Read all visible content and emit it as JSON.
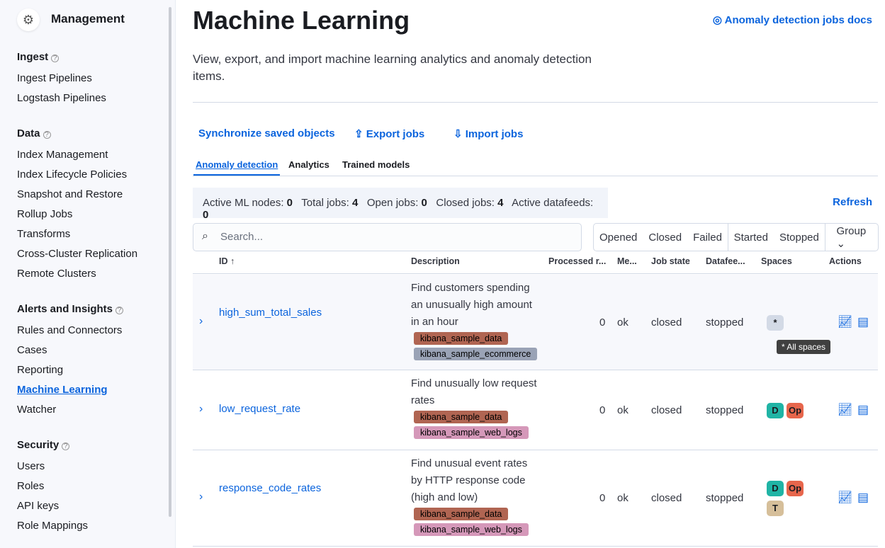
{
  "sidebar": {
    "title": "Management",
    "sections": [
      {
        "label": "Ingest",
        "items": [
          "Ingest Pipelines",
          "Logstash Pipelines"
        ]
      },
      {
        "label": "Data",
        "items": [
          "Index Management",
          "Index Lifecycle Policies",
          "Snapshot and Restore",
          "Rollup Jobs",
          "Transforms",
          "Cross-Cluster Replication",
          "Remote Clusters"
        ]
      },
      {
        "label": "Alerts and Insights",
        "items": [
          "Rules and Connectors",
          "Cases",
          "Reporting",
          "Machine Learning",
          "Watcher"
        ]
      },
      {
        "label": "Security",
        "items": [
          "Users",
          "Roles",
          "API keys",
          "Role Mappings"
        ]
      }
    ],
    "active": "Machine Learning"
  },
  "header": {
    "title": "Machine Learning",
    "docs_link": "Anomaly detection jobs docs",
    "description": "View, export, and import machine learning analytics and anomaly detection items."
  },
  "actions": {
    "sync": "Synchronize saved objects",
    "export": "Export jobs",
    "import": "Import jobs"
  },
  "tabs": [
    "Anomaly detection",
    "Analytics",
    "Trained models"
  ],
  "stats": {
    "active_ml_nodes_label": "Active ML nodes:",
    "active_ml_nodes": "0",
    "total_jobs_label": "Total jobs:",
    "total_jobs": "4",
    "open_jobs_label": "Open jobs:",
    "open_jobs": "0",
    "closed_jobs_label": "Closed jobs:",
    "closed_jobs": "4",
    "active_datafeeds_label": "Active datafeeds:",
    "active_datafeeds": "0"
  },
  "refresh": "Refresh",
  "search": {
    "placeholder": "Search..."
  },
  "filters": [
    "Opened",
    "Closed",
    "Failed",
    "Started",
    "Stopped",
    "Group"
  ],
  "columns": [
    "ID",
    "Description",
    "Processed r...",
    "Me...",
    "Job state",
    "Datafee...",
    "Spaces",
    "Actions"
  ],
  "rows": [
    {
      "id": "high_sum_total_sales",
      "desc": "Find customers spending an unusually high amount in an hour",
      "tags": [
        "kibana_sample_data",
        "kibana_sample_ecommerce"
      ],
      "processed": "0",
      "memory": "ok",
      "state": "closed",
      "datafeed": "stopped",
      "spaces": [
        "*"
      ]
    },
    {
      "id": "low_request_rate",
      "desc": "Find unusually low request rates",
      "tags": [
        "kibana_sample_data",
        "kibana_sample_web_logs"
      ],
      "processed": "0",
      "memory": "ok",
      "state": "closed",
      "datafeed": "stopped",
      "spaces": [
        "D",
        "Op"
      ]
    },
    {
      "id": "response_code_rates",
      "desc": "Find unusual event rates by HTTP response code (high and low)",
      "tags": [
        "kibana_sample_data",
        "kibana_sample_web_logs"
      ],
      "processed": "0",
      "memory": "ok",
      "state": "closed",
      "datafeed": "stopped",
      "spaces": [
        "D",
        "Op",
        "T"
      ]
    }
  ],
  "tooltip": "* All spaces",
  "colors": {
    "accent": "#0b64dd",
    "tag_sample_data": "#b06552",
    "tag_ecommerce": "#9aa3b6",
    "tag_web_logs": "#d598b9",
    "space_D": "#20b4a5",
    "space_Op": "#e7664c",
    "space_T": "#d6bf9a"
  }
}
